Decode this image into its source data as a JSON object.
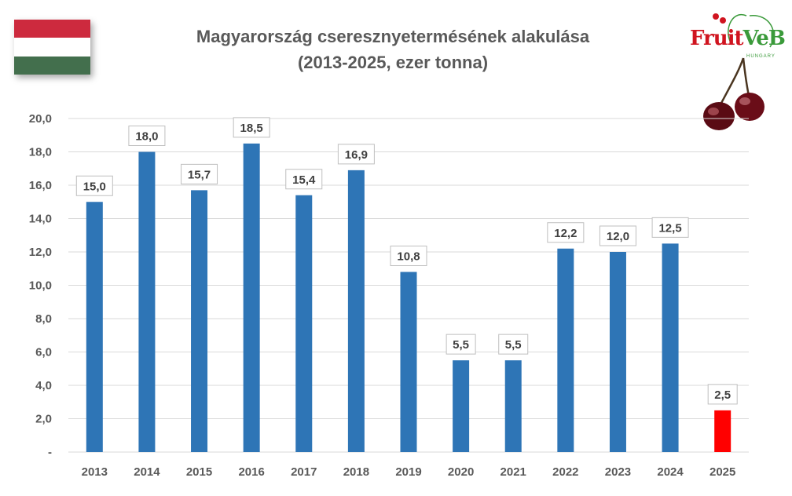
{
  "title_line1": "Magyarország cseresznyetermésének alakulása",
  "title_line2": "(2013-2025, ezer tonna)",
  "logo": {
    "text_red": "Fruit",
    "text_green": "VeB",
    "subtext": "HUNGARY"
  },
  "flag_colors": [
    "#cd2a3e",
    "#ffffff",
    "#436f4d"
  ],
  "colors": {
    "bar": "#2e75b6",
    "bar_highlight": "#ff0000",
    "grid": "#d9d9d9",
    "text": "#595959"
  },
  "chart_data": {
    "type": "bar",
    "categories": [
      "2013",
      "2014",
      "2015",
      "2016",
      "2017",
      "2018",
      "2019",
      "2020",
      "2021",
      "2022",
      "2023",
      "2024",
      "2025"
    ],
    "values": [
      15.0,
      18.0,
      15.7,
      18.5,
      15.4,
      16.9,
      10.8,
      5.5,
      5.5,
      12.2,
      12.0,
      12.5,
      2.5
    ],
    "data_labels": [
      "15,0",
      "18,0",
      "15,7",
      "18,5",
      "15,4",
      "16,9",
      "10,8",
      "5,5",
      "5,5",
      "12,2",
      "12,0",
      "12,5",
      "2,5"
    ],
    "highlight_index": 12,
    "ylim": [
      0,
      20
    ],
    "ytick_values": [
      0,
      2,
      4,
      6,
      8,
      10,
      12,
      14,
      16,
      18,
      20
    ],
    "ytick_labels": [
      "-",
      "2,0",
      "4,0",
      "6,0",
      "8,0",
      "10,0",
      "12,0",
      "14,0",
      "16,0",
      "18,0",
      "20,0"
    ],
    "grid": true,
    "legend": "none"
  }
}
